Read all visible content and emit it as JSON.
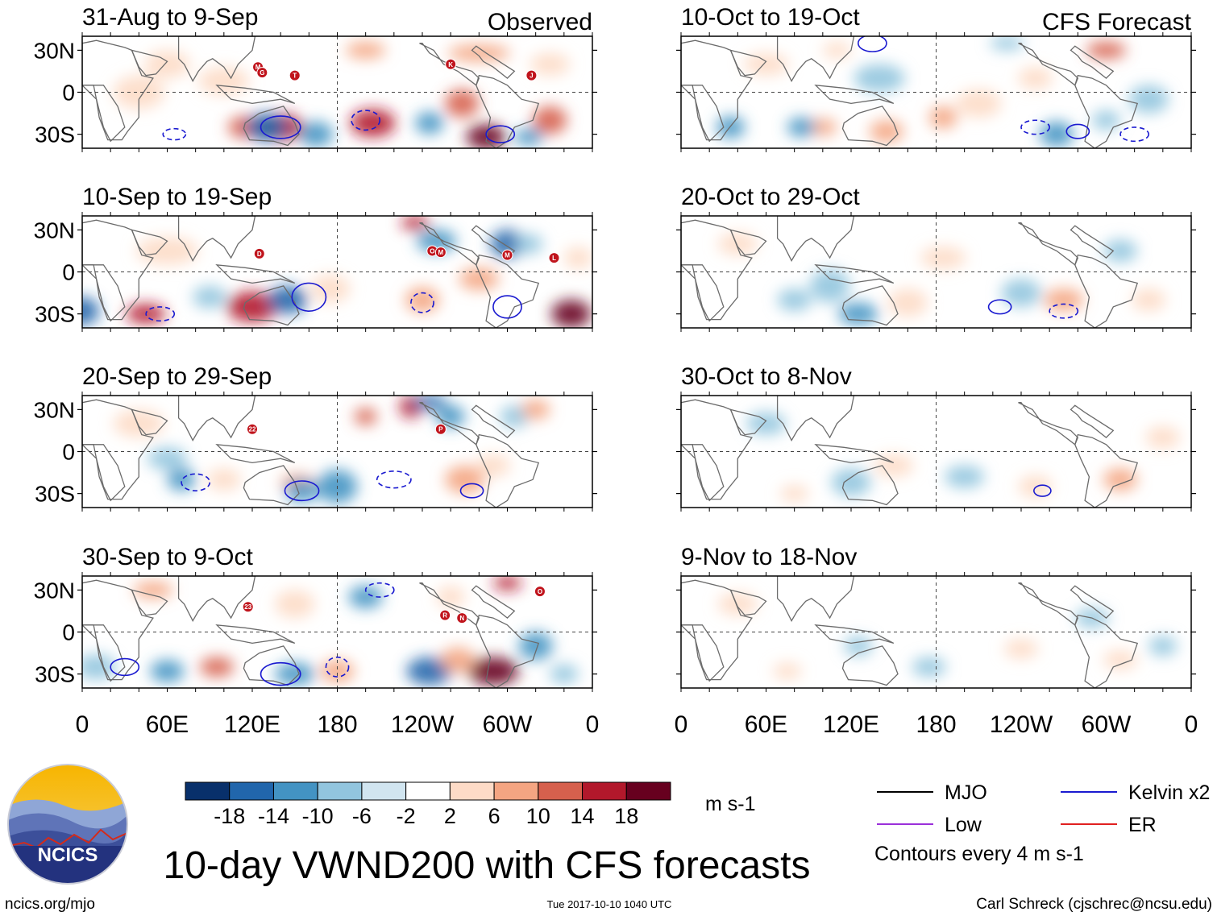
{
  "chart_data": {
    "type": "heatmap",
    "title": "10-day VWND200 with CFS forecasts",
    "variable": "VWND200",
    "units": "m s-1",
    "contour_note": "Contours every 4 m s-1",
    "x_ticks": [
      "0",
      "60E",
      "120E",
      "180",
      "120W",
      "60W",
      "0"
    ],
    "y_ticks": [
      "30N",
      "0",
      "30S"
    ],
    "color_levels": [
      "-18",
      "-14",
      "-10",
      "-6",
      "-2",
      "2",
      "6",
      "10",
      "14",
      "18"
    ],
    "color_scale": [
      "#08306b",
      "#2166ac",
      "#4393c3",
      "#92c5de",
      "#d1e5f0",
      "#ffffff",
      "#fddbc7",
      "#f4a582",
      "#d6604d",
      "#b2182b",
      "#67001f"
    ],
    "legend": [
      {
        "label": "MJO",
        "color": "#000000"
      },
      {
        "label": "Kelvin x2",
        "color": "#1a1ad0"
      },
      {
        "label": "Low",
        "color": "#9b30d9"
      },
      {
        "label": "ER",
        "color": "#e02020"
      }
    ],
    "columns": [
      {
        "label": "Observed",
        "panels": [
          {
            "period": "31-Aug to 9-Sep",
            "storms": [
              "M",
              "G",
              "T",
              "K",
              "J"
            ]
          },
          {
            "period": "10-Sep to 19-Sep",
            "storms": [
              "D",
              "O",
              "M",
              "M",
              "L"
            ]
          },
          {
            "period": "20-Sep to 29-Sep",
            "storms": [
              "22",
              "P"
            ]
          },
          {
            "period": "30-Sep to 9-Oct",
            "storms": [
              "23",
              "R",
              "N",
              "O"
            ]
          }
        ]
      },
      {
        "label": "CFS Forecast",
        "panels": [
          {
            "period": "10-Oct to 19-Oct"
          },
          {
            "period": "20-Oct to 29-Oct"
          },
          {
            "period": "30-Oct to 8-Nov"
          },
          {
            "period": "9-Nov to 18-Nov"
          }
        ]
      }
    ]
  },
  "branding": {
    "logo_text": "NCICS",
    "site": "ncics.org/mjo",
    "timestamp": "Tue 2017-10-10 1040 UTC",
    "author": "Carl Schreck (cjschrec@ncsu.edu)"
  }
}
